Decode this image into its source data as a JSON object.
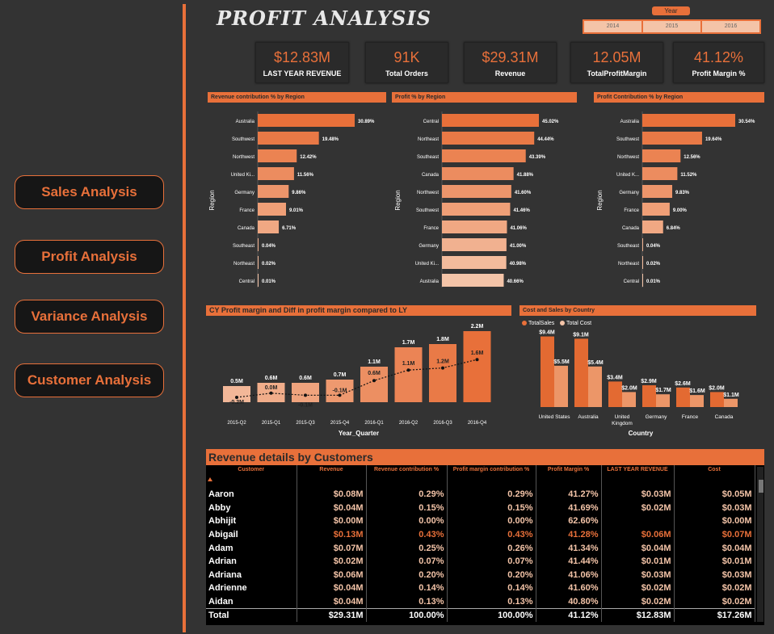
{
  "title": "PROFIT ANALYSIS",
  "nav": [
    {
      "label": "Sales Analysis"
    },
    {
      "label": "Profit Analysis"
    },
    {
      "label": "Variance Analysis"
    },
    {
      "label": "Customer Analysis"
    }
  ],
  "year_slicer": {
    "label": "Year",
    "options": [
      "2014",
      "2015",
      "2016"
    ]
  },
  "kpis": [
    {
      "value": "$12.83M",
      "label": "LAST YEAR REVENUE"
    },
    {
      "value": "91K",
      "label": "Total Orders"
    },
    {
      "value": "$29.31M",
      "label": "Revenue"
    },
    {
      "value": "12.05M",
      "label": "TotalProfitMargin"
    },
    {
      "value": "41.12%",
      "label": "Profit Margin %"
    }
  ],
  "colors": {
    "accent": "#e8703a",
    "light": "#f4c4a8",
    "bg": "#333333"
  },
  "chart_data": [
    {
      "type": "bar",
      "orientation": "horizontal",
      "title": "Revenue contribution % by Region",
      "ylabel": "Region",
      "categories": [
        "Australia",
        "Southwest",
        "Northwest",
        "United Ki...",
        "Germany",
        "France",
        "Canada",
        "Southeast",
        "Northeast",
        "Central"
      ],
      "values": [
        30.89,
        19.48,
        12.42,
        11.56,
        9.86,
        9.01,
        6.71,
        0.04,
        0.02,
        0.01
      ],
      "labels": [
        "30.89%",
        "19.48%",
        "12.42%",
        "11.56%",
        "9.86%",
        "9.01%",
        "6.71%",
        "0.04%",
        "0.02%",
        "0.01%"
      ]
    },
    {
      "type": "bar",
      "orientation": "horizontal",
      "title": "Profit % by Region",
      "ylabel": "Region",
      "categories": [
        "Central",
        "Northeast",
        "Southeast",
        "Canada",
        "Northwest",
        "Southwest",
        "France",
        "Germany",
        "United Ki...",
        "Australia"
      ],
      "values": [
        45.02,
        44.44,
        43.39,
        41.88,
        41.6,
        41.46,
        41.06,
        41.0,
        40.98,
        40.66
      ],
      "labels": [
        "45.02%",
        "44.44%",
        "43.39%",
        "41.88%",
        "41.60%",
        "41.46%",
        "41.06%",
        "41.00%",
        "40.98%",
        "40.66%"
      ]
    },
    {
      "type": "bar",
      "orientation": "horizontal",
      "title": "Profit Contribution % by Region",
      "ylabel": "Region",
      "categories": [
        "Australia",
        "Southwest",
        "Northwest",
        "United K...",
        "Germany",
        "France",
        "Canada",
        "Southeast",
        "Northeast",
        "Central"
      ],
      "values": [
        30.54,
        19.64,
        12.56,
        11.52,
        9.83,
        9.0,
        6.84,
        0.04,
        0.02,
        0.01
      ],
      "labels": [
        "30.54%",
        "19.64%",
        "12.56%",
        "11.52%",
        "9.83%",
        "9.00%",
        "6.84%",
        "0.04%",
        "0.02%",
        "0.01%"
      ]
    },
    {
      "type": "bar",
      "title": "CY Profit margin and Diff in profit margin compared to LY",
      "xlabel": "Year_Quarter",
      "categories": [
        "2015-Q2",
        "2015-Q1",
        "2015-Q3",
        "2015-Q4",
        "2016-Q1",
        "2016-Q2",
        "2016-Q3",
        "2016-Q4"
      ],
      "series": [
        {
          "values": [
            0.5,
            0.6,
            0.6,
            0.7,
            1.1,
            1.7,
            1.8,
            2.2
          ],
          "labels": [
            "0.5M",
            "0.6M",
            "0.6M",
            "0.7M",
            "1.1M",
            "1.7M",
            "1.8M",
            "2.2M"
          ]
        },
        {
          "type": "line",
          "values": [
            -0.2,
            0.0,
            -0.1,
            -0.1,
            0.6,
            1.1,
            1.2,
            1.6
          ],
          "labels": [
            "-0.2M",
            "0.0M",
            "-0.1M",
            "-0.1M",
            "0.6M",
            "1.1M",
            "1.2M",
            "1.6M"
          ]
        }
      ]
    },
    {
      "type": "bar",
      "title": "Cost and Sales by Country",
      "xlabel": "Country",
      "categories": [
        "United States",
        "Australia",
        "United Kingdom",
        "Germany",
        "France",
        "Canada"
      ],
      "series": [
        {
          "name": "TotalSales",
          "values": [
            9.4,
            9.1,
            3.4,
            2.9,
            2.6,
            2.0
          ],
          "labels": [
            "$9.4M",
            "$9.1M",
            "$3.4M",
            "$2.9M",
            "$2.6M",
            "$2.0M"
          ]
        },
        {
          "name": "Total Cost",
          "values": [
            5.5,
            5.4,
            2.0,
            1.7,
            1.6,
            1.1
          ],
          "labels": [
            "$5.5M",
            "$5.4M",
            "$2.0M",
            "$1.7M",
            "$1.6M",
            "$1.1M"
          ]
        }
      ]
    }
  ],
  "customer_table": {
    "title": "Revenue details by Customers",
    "columns": [
      "Customer",
      "Revenue",
      "Revenue contribution %",
      "Profit margin contribution %",
      "Profit Margin %",
      "LAST YEAR REVENUE",
      "Cost"
    ],
    "rows": [
      [
        "Aaron",
        "$0.08M",
        "0.29%",
        "0.29%",
        "41.27%",
        "$0.03M",
        "$0.05M"
      ],
      [
        "Abby",
        "$0.04M",
        "0.15%",
        "0.15%",
        "41.69%",
        "$0.02M",
        "$0.03M"
      ],
      [
        "Abhijit",
        "$0.00M",
        "0.00%",
        "0.00%",
        "62.60%",
        "",
        "$0.00M"
      ],
      [
        "Abigail",
        "$0.13M",
        "0.43%",
        "0.43%",
        "41.28%",
        "$0.06M",
        "$0.07M"
      ],
      [
        "Adam",
        "$0.07M",
        "0.25%",
        "0.26%",
        "41.34%",
        "$0.04M",
        "$0.04M"
      ],
      [
        "Adrian",
        "$0.02M",
        "0.07%",
        "0.07%",
        "41.44%",
        "$0.01M",
        "$0.01M"
      ],
      [
        "Adriana",
        "$0.06M",
        "0.20%",
        "0.20%",
        "41.06%",
        "$0.03M",
        "$0.03M"
      ],
      [
        "Adrienne",
        "$0.04M",
        "0.14%",
        "0.14%",
        "41.60%",
        "$0.02M",
        "$0.02M"
      ],
      [
        "Aidan",
        "$0.04M",
        "0.13%",
        "0.13%",
        "40.80%",
        "$0.02M",
        "$0.02M"
      ]
    ],
    "total": [
      "Total",
      "$29.31M",
      "100.00%",
      "100.00%",
      "41.12%",
      "$12.83M",
      "$17.26M"
    ]
  }
}
